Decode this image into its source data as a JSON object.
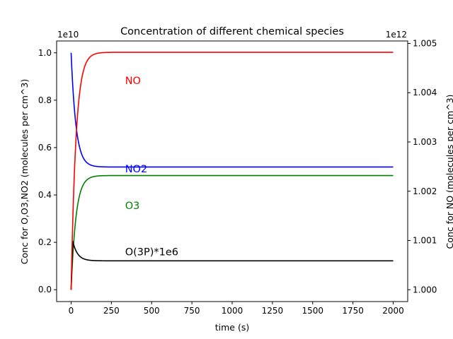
{
  "chart_data": {
    "type": "line",
    "title": "Concentration of different chemical species",
    "xlabel": "time (s)",
    "ylabel_left": "Conc for O,O3,NO2 (molecules per cm^3)",
    "ylabel_right": "Conc for NO (molecules per cm^3)",
    "left_multiplier": "1e10",
    "right_multiplier": "1e12",
    "xlim": [
      -90,
      2090
    ],
    "ylim_left": [
      -0.05,
      1.05
    ],
    "ylim_right": [
      0.99976,
      1.00505
    ],
    "x_ticks": [
      0,
      250,
      500,
      750,
      1000,
      1250,
      1500,
      1750,
      2000
    ],
    "y_left_ticks": [
      "0.0",
      "0.2",
      "0.4",
      "0.6",
      "0.8",
      "1.0"
    ],
    "y_right_ticks": [
      "1.000",
      "1.001",
      "1.002",
      "1.003",
      "1.004",
      "1.005"
    ],
    "grid": false,
    "series": [
      {
        "name": "NO2",
        "axis": "left",
        "color": "#0000ff",
        "model": {
          "start": 1.0,
          "end": 0.518,
          "tau": 30
        },
        "label": {
          "text": "NO2",
          "x": 335,
          "y": 0.51
        }
      },
      {
        "name": "O3",
        "axis": "left",
        "color": "#008000",
        "model": {
          "start": 0.0,
          "end": 0.482,
          "tau": 30
        },
        "label": {
          "text": "O3",
          "x": 335,
          "y": 0.355
        }
      },
      {
        "name": "O(3P)*1e6",
        "axis": "left",
        "color": "#000000",
        "model": {
          "start": 0.0,
          "peak": 0.205,
          "peak_x": 10,
          "end": 0.122,
          "tau": 30
        },
        "label": {
          "text": "O(3P)*1e6",
          "x": 335,
          "y": 0.16
        }
      },
      {
        "name": "NO",
        "axis": "right",
        "color": "#ff0000",
        "model": {
          "start": 1.0,
          "end": 1.00482,
          "tau": 30
        },
        "label": {
          "text": "NO",
          "x": 335,
          "y": 1.00425
        }
      }
    ]
  }
}
